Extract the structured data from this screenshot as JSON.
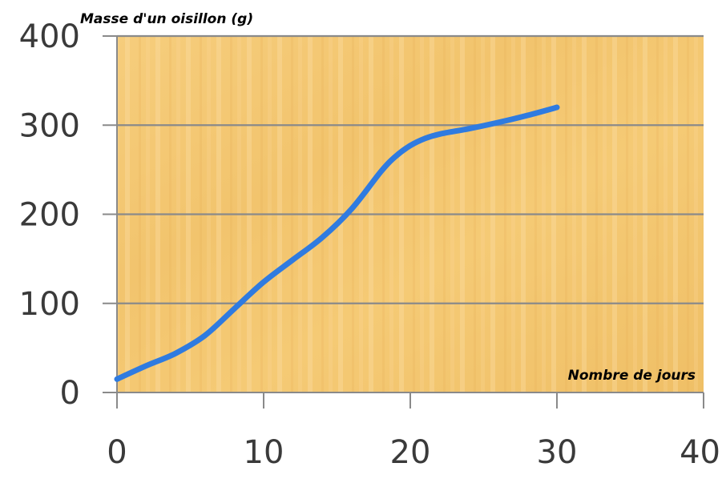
{
  "chart_data": {
    "type": "line",
    "title": "",
    "ylabel": "Masse d'un oisillon (g)",
    "xlabel": "Nombre de jours",
    "xlim": [
      0,
      40
    ],
    "ylim": [
      0,
      400
    ],
    "x_ticks": [
      "0",
      "10",
      "20",
      "30",
      "40"
    ],
    "y_ticks": [
      "0",
      "100",
      "200",
      "300",
      "400"
    ],
    "grid": "horizontal",
    "legend": "none",
    "series": [
      {
        "x": [
          0,
          2,
          4,
          6,
          8,
          10,
          12,
          14,
          16,
          18,
          19,
          20,
          21,
          22,
          24,
          26,
          28,
          30
        ],
        "y": [
          15,
          30,
          44,
          64,
          94,
          124,
          149,
          174,
          206,
          248,
          265,
          277,
          285,
          290,
          296,
          303,
          311,
          320
        ]
      }
    ],
    "colors": {
      "line": "#2f7be0",
      "plot_bg": "#f3c670",
      "grid": "#8a8a8a"
    }
  }
}
